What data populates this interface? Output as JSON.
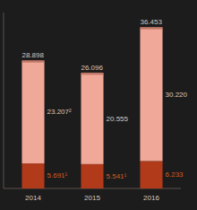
{
  "chart_data": {
    "type": "bar",
    "stacked": true,
    "data_labels": true,
    "tick_labels": "x",
    "grid": false,
    "categories": [
      "2014",
      "2015",
      "2016"
    ],
    "series": [
      {
        "color": "#b03a1a",
        "values": [
          5.691,
          5.541,
          6.233
        ],
        "value_labels": [
          "5.691¹",
          "5.541¹",
          "6.233"
        ]
      },
      {
        "color": "#f0a898",
        "values": [
          23.207,
          20.555,
          30.22
        ],
        "value_labels": [
          "23.207²",
          "20.555",
          "30.220"
        ]
      }
    ],
    "totals": [
      28.898,
      26.096,
      36.453
    ],
    "total_labels": [
      "28.898",
      "26.096",
      "36.453"
    ],
    "ylim": [
      0,
      40
    ]
  }
}
